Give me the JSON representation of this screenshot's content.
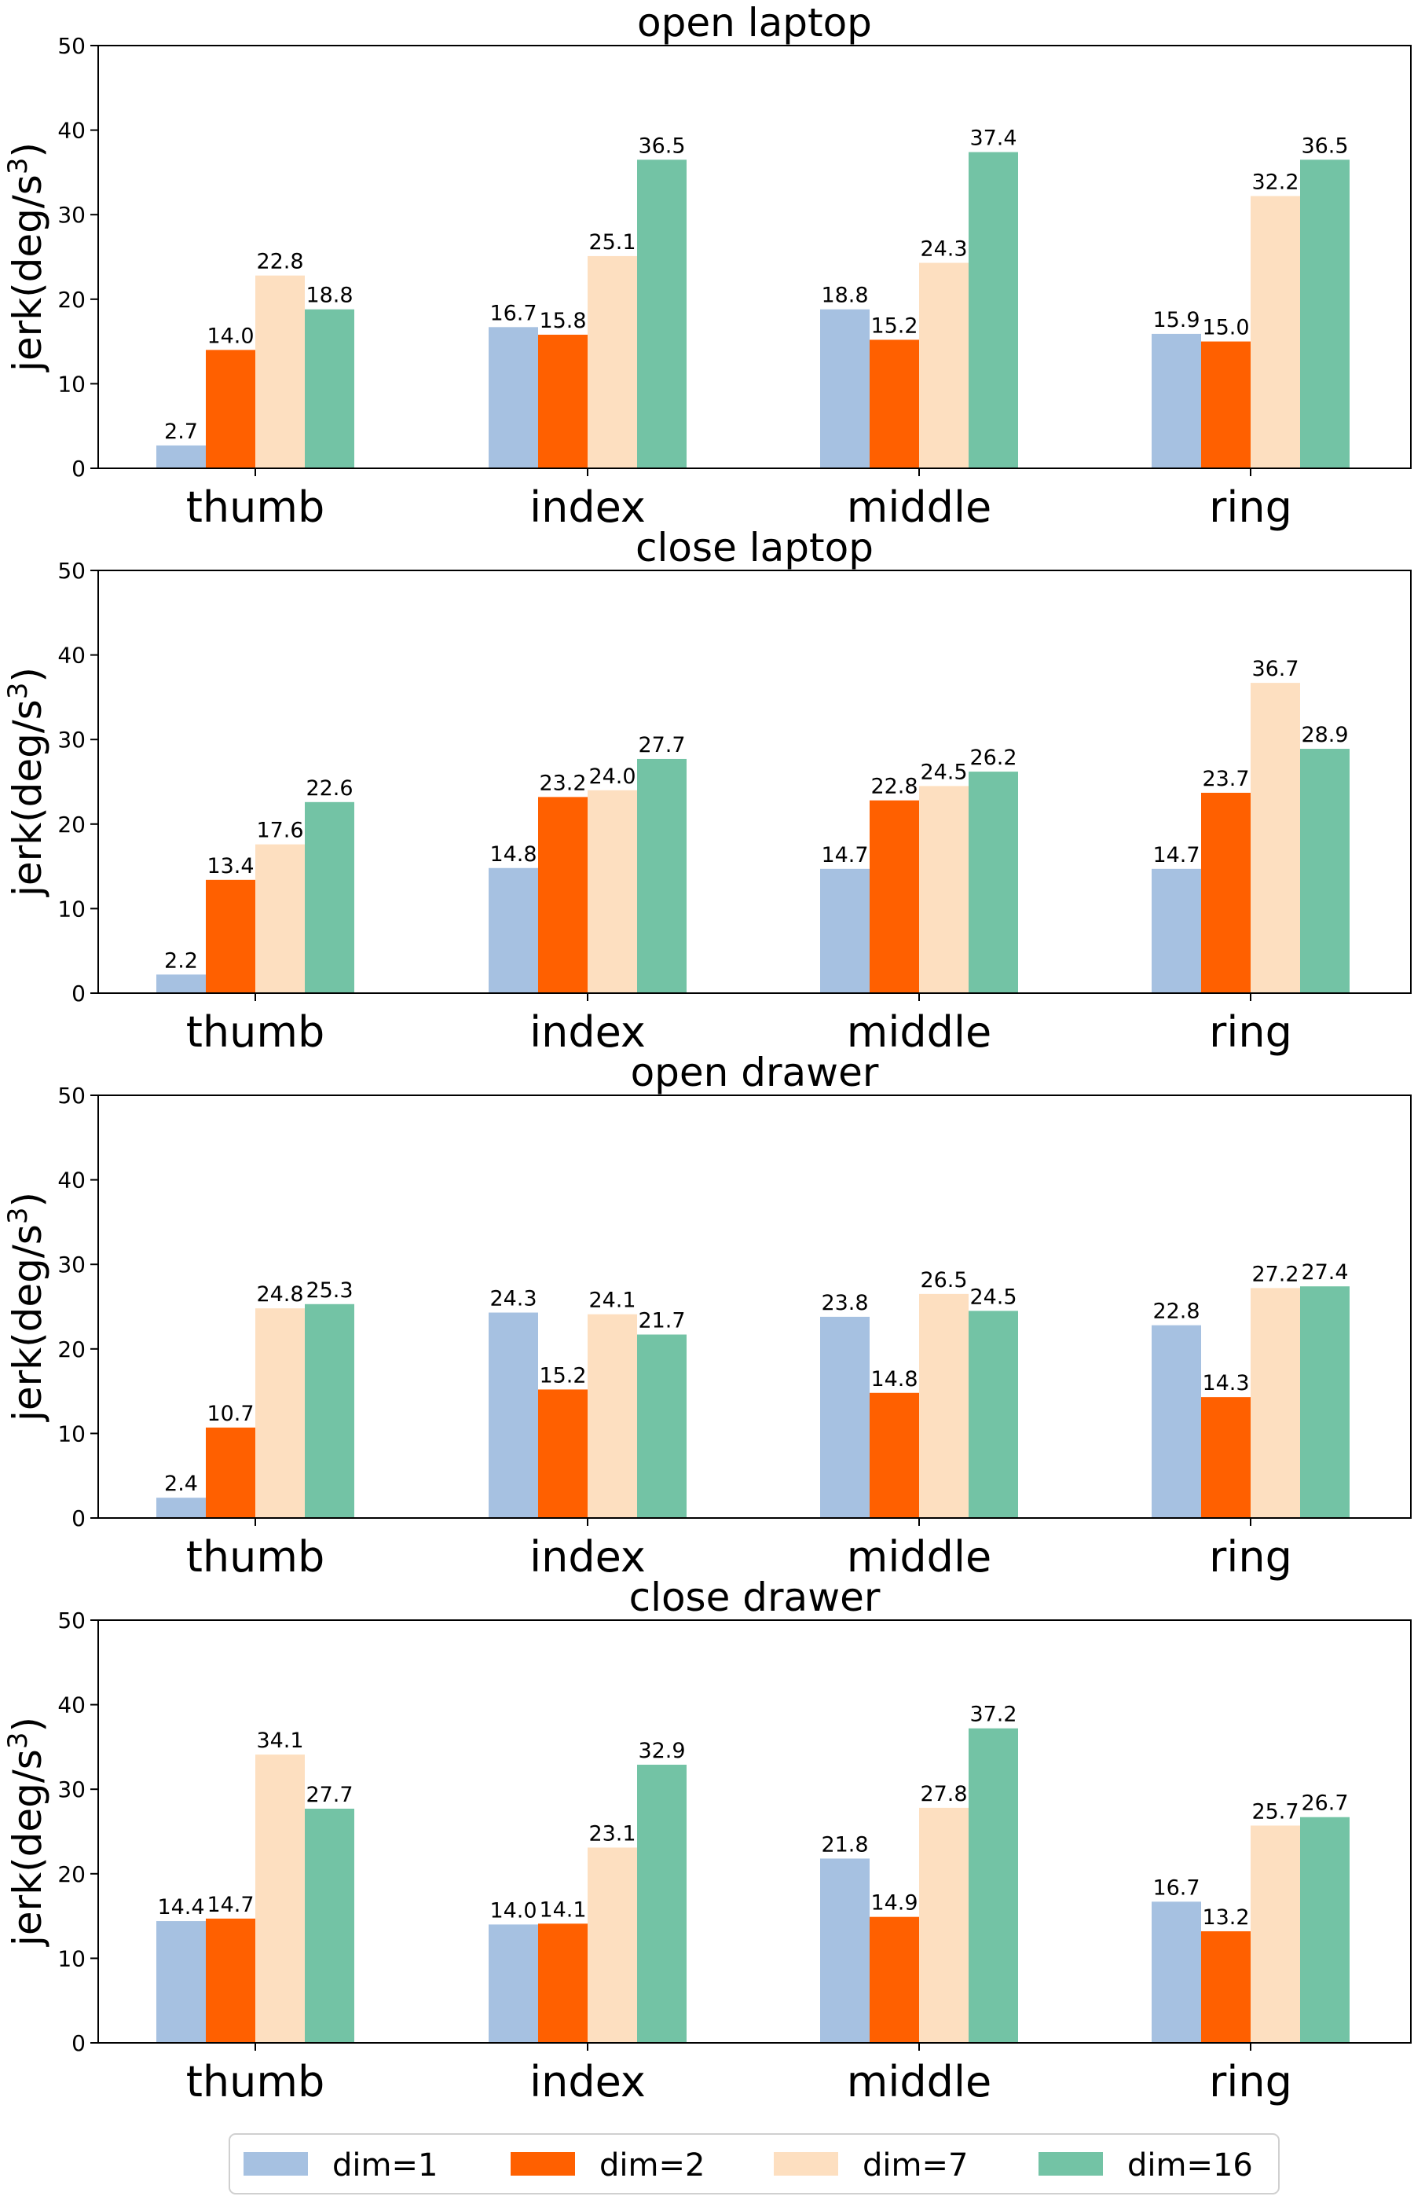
{
  "chart_data": [
    {
      "type": "bar",
      "title": "open laptop",
      "ylabel": "jerk(deg/s",
      "ylabel_exponent": "3",
      "ylabel_close": ")",
      "ylim": [
        0,
        50
      ],
      "yticks": [
        "0",
        "10",
        "20",
        "30",
        "40",
        "50"
      ],
      "categories": [
        "thumb",
        "index",
        "middle",
        "ring"
      ],
      "series": [
        {
          "name": "dim=1",
          "values": [
            2.7,
            16.7,
            18.8,
            15.9
          ]
        },
        {
          "name": "dim=2",
          "values": [
            14.0,
            15.8,
            15.2,
            15.0
          ]
        },
        {
          "name": "dim=7",
          "values": [
            22.8,
            25.1,
            24.3,
            32.2
          ]
        },
        {
          "name": "dim=16",
          "values": [
            18.8,
            36.5,
            37.4,
            36.5
          ]
        }
      ],
      "data_labels": [
        [
          "2.7",
          "16.7",
          "18.8",
          "15.9"
        ],
        [
          "14.0",
          "15.8",
          "15.2",
          "15.0"
        ],
        [
          "22.8",
          "25.1",
          "24.3",
          "32.2"
        ],
        [
          "18.8",
          "36.5",
          "37.4",
          "36.5"
        ]
      ]
    },
    {
      "type": "bar",
      "title": "close laptop",
      "ylabel": "jerk(deg/s",
      "ylabel_exponent": "3",
      "ylabel_close": ")",
      "ylim": [
        0,
        50
      ],
      "yticks": [
        "0",
        "10",
        "20",
        "30",
        "40",
        "50"
      ],
      "categories": [
        "thumb",
        "index",
        "middle",
        "ring"
      ],
      "series": [
        {
          "name": "dim=1",
          "values": [
            2.2,
            14.8,
            14.7,
            14.7
          ]
        },
        {
          "name": "dim=2",
          "values": [
            13.4,
            23.2,
            22.8,
            23.7
          ]
        },
        {
          "name": "dim=7",
          "values": [
            17.6,
            24.0,
            24.5,
            36.7
          ]
        },
        {
          "name": "dim=16",
          "values": [
            22.6,
            27.7,
            26.2,
            28.9
          ]
        }
      ],
      "data_labels": [
        [
          "2.2",
          "14.8",
          "14.7",
          "14.7"
        ],
        [
          "13.4",
          "23.2",
          "22.8",
          "23.7"
        ],
        [
          "17.6",
          "24.0",
          "24.5",
          "36.7"
        ],
        [
          "22.6",
          "27.7",
          "26.2",
          "28.9"
        ]
      ]
    },
    {
      "type": "bar",
      "title": "open drawer",
      "ylabel": "jerk(deg/s",
      "ylabel_exponent": "3",
      "ylabel_close": ")",
      "ylim": [
        0,
        50
      ],
      "yticks": [
        "0",
        "10",
        "20",
        "30",
        "40",
        "50"
      ],
      "categories": [
        "thumb",
        "index",
        "middle",
        "ring"
      ],
      "series": [
        {
          "name": "dim=1",
          "values": [
            2.4,
            24.3,
            23.8,
            22.8
          ]
        },
        {
          "name": "dim=2",
          "values": [
            10.7,
            15.2,
            14.8,
            14.3
          ]
        },
        {
          "name": "dim=7",
          "values": [
            24.8,
            24.1,
            26.5,
            27.2
          ]
        },
        {
          "name": "dim=16",
          "values": [
            25.3,
            21.7,
            24.5,
            27.4
          ]
        }
      ],
      "data_labels": [
        [
          "2.4",
          "24.3",
          "23.8",
          "22.8"
        ],
        [
          "10.7",
          "15.2",
          "14.8",
          "14.3"
        ],
        [
          "24.8",
          "24.1",
          "26.5",
          "27.2"
        ],
        [
          "25.3",
          "21.7",
          "24.5",
          "27.4"
        ]
      ]
    },
    {
      "type": "bar",
      "title": "close drawer",
      "ylabel": "jerk(deg/s",
      "ylabel_exponent": "3",
      "ylabel_close": ")",
      "ylim": [
        0,
        50
      ],
      "yticks": [
        "0",
        "10",
        "20",
        "30",
        "40",
        "50"
      ],
      "categories": [
        "thumb",
        "index",
        "middle",
        "ring"
      ],
      "series": [
        {
          "name": "dim=1",
          "values": [
            14.4,
            14.0,
            21.8,
            16.7
          ]
        },
        {
          "name": "dim=2",
          "values": [
            14.7,
            14.1,
            14.9,
            13.2
          ]
        },
        {
          "name": "dim=7",
          "values": [
            34.1,
            23.1,
            27.8,
            25.7
          ]
        },
        {
          "name": "dim=16",
          "values": [
            27.7,
            32.9,
            37.2,
            26.7
          ]
        }
      ],
      "data_labels": [
        [
          "14.4",
          "14.0",
          "21.8",
          "16.7"
        ],
        [
          "14.7",
          "14.1",
          "14.9",
          "13.2"
        ],
        [
          "34.1",
          "23.1",
          "27.8",
          "25.7"
        ],
        [
          "27.7",
          "32.9",
          "37.2",
          "26.7"
        ]
      ]
    }
  ],
  "legend": {
    "placement": "bottom-center",
    "entries": [
      "dim=1",
      "dim=2",
      "dim=7",
      "dim=16"
    ]
  },
  "colors": {
    "dim=1": "#a6c1e1",
    "dim=2": "#ff6000",
    "dim=7": "#fddfc0",
    "dim=16": "#73c3a5"
  }
}
